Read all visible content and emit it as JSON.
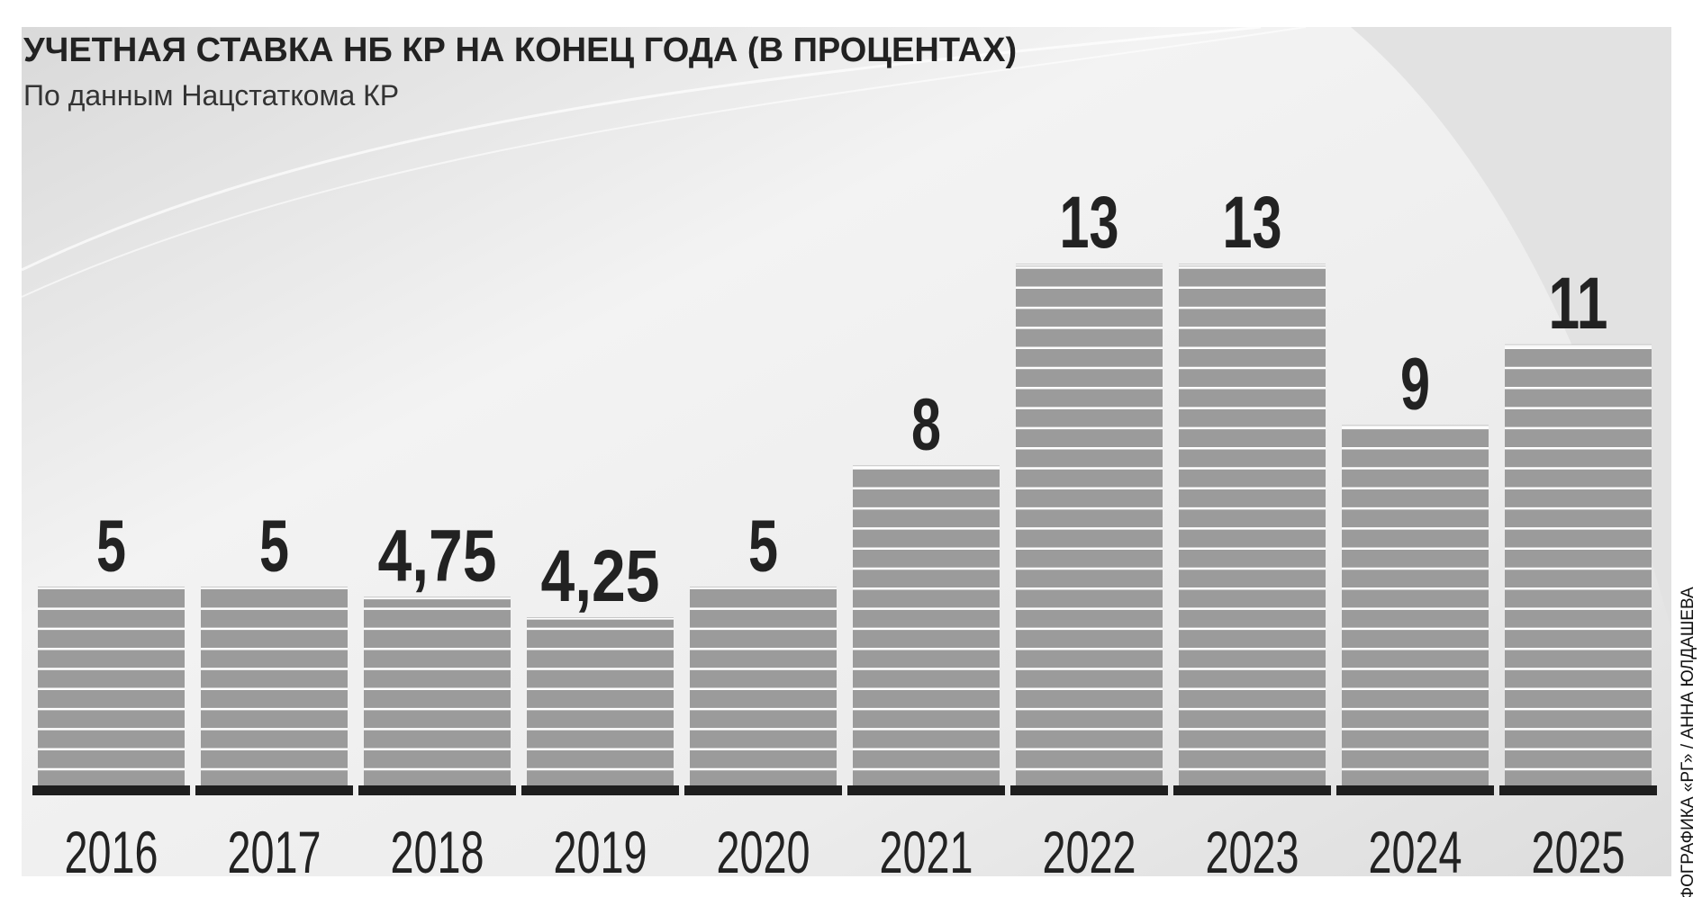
{
  "chart_data": {
    "type": "bar",
    "title": "УЧЕТНАЯ СТАВКА НБ КР НА КОНЕЦ ГОДА (В ПРОЦЕНТАХ)",
    "subtitle": "По данным Нацстаткома КР",
    "categories": [
      "2016",
      "2017",
      "2018",
      "2019",
      "2020",
      "2021",
      "2022",
      "2023",
      "2024",
      "2025"
    ],
    "values": [
      5,
      5,
      4.75,
      4.25,
      5,
      8,
      13,
      13,
      9,
      11
    ],
    "value_labels": [
      "5",
      "5",
      "4,75",
      "4,25",
      "5",
      "8",
      "13",
      "13",
      "9",
      "11"
    ],
    "color": "#9b9b9b",
    "credit": "ИНФОГРАФИКА «РГ» / АННА ЮЛДАШЕВА"
  }
}
